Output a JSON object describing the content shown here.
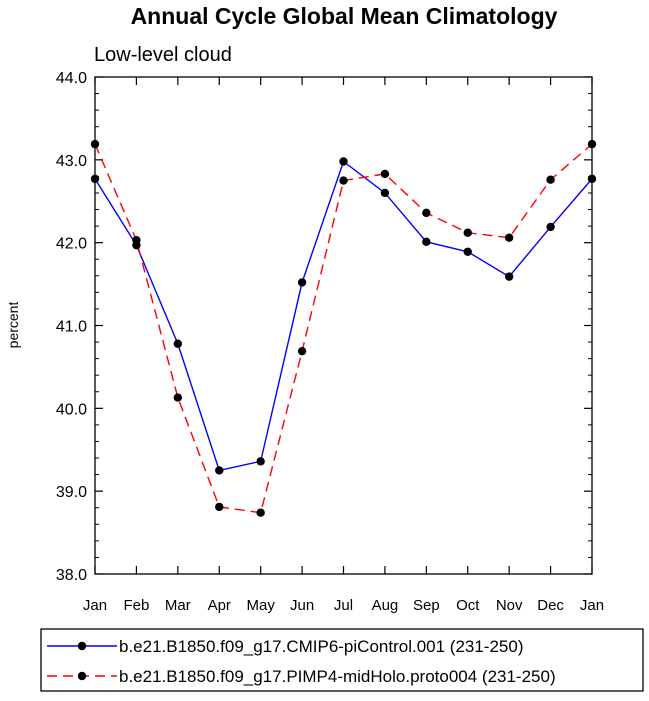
{
  "chart_data": {
    "type": "line",
    "title": "Annual Cycle Global Mean Climatology",
    "subtitle": "Low-level cloud",
    "xlabel": "",
    "ylabel": "percent",
    "categories": [
      "Jan",
      "Feb",
      "Mar",
      "Apr",
      "May",
      "Jun",
      "Jul",
      "Aug",
      "Sep",
      "Oct",
      "Nov",
      "Dec",
      "Jan"
    ],
    "ylim": [
      38.0,
      44.0
    ],
    "yticks": [
      "38.0",
      "39.0",
      "40.0",
      "41.0",
      "42.0",
      "43.0",
      "44.0"
    ],
    "grid": false,
    "legend_position": "bottom",
    "series": [
      {
        "name": "b.e21.B1850.f09_g17.CMIP6-piControl.001 (231-250)",
        "color": "#0000ff",
        "line_style": "solid",
        "values": [
          42.77,
          41.97,
          40.78,
          39.25,
          39.36,
          41.52,
          42.98,
          42.6,
          42.01,
          41.89,
          41.59,
          42.19,
          42.77
        ]
      },
      {
        "name": "b.e21.B1850.f09_g17.PIMP4-midHolo.proto004 (231-250)",
        "color": "#ff0000",
        "line_style": "dashed",
        "values": [
          43.19,
          42.03,
          40.13,
          38.81,
          38.74,
          40.69,
          42.75,
          42.83,
          42.36,
          42.12,
          42.06,
          42.76,
          43.19
        ]
      }
    ]
  }
}
